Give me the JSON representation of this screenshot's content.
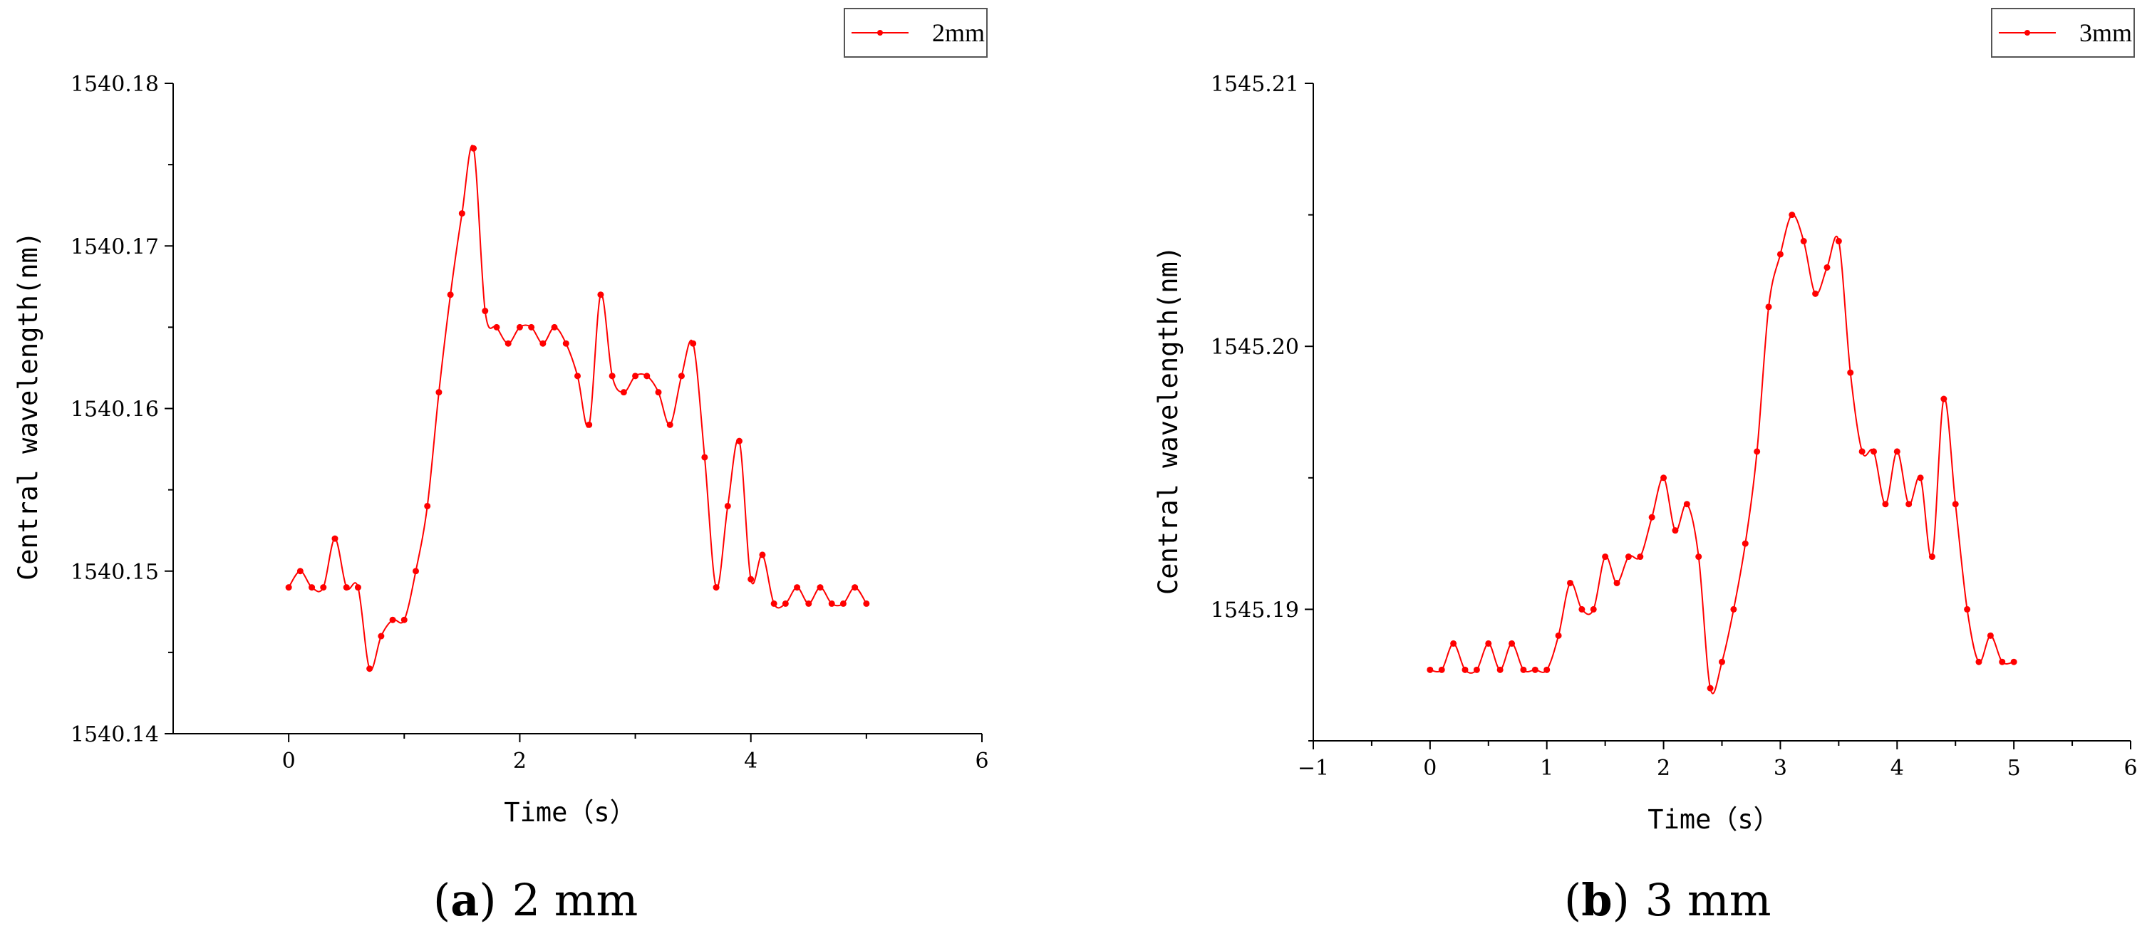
{
  "chart_data": [
    {
      "type": "line",
      "caption_label": "a",
      "caption_text": "2 mm",
      "xlabel": "Time（s）",
      "ylabel": "Central wavelength(nm)",
      "xlim": [
        -1,
        6
      ],
      "ylim": [
        1540.14,
        1540.18
      ],
      "xticks": [
        "0",
        "2",
        "4",
        "6"
      ],
      "yticks": [
        "1540.14",
        "1540.15",
        "1540.16",
        "1540.17",
        "1540.18"
      ],
      "legend_position": "top-right",
      "line_color": "#ff0000",
      "series": [
        {
          "name": "2mm",
          "x": [
            0,
            0.1,
            0.2,
            0.3,
            0.4,
            0.5,
            0.6,
            0.7,
            0.8,
            0.9,
            1.0,
            1.1,
            1.2,
            1.3,
            1.4,
            1.5,
            1.6,
            1.7,
            1.8,
            1.9,
            2.0,
            2.1,
            2.2,
            2.3,
            2.4,
            2.5,
            2.6,
            2.7,
            2.8,
            2.9,
            3.0,
            3.1,
            3.2,
            3.3,
            3.4,
            3.5,
            3.6,
            3.7,
            3.8,
            3.9,
            4.0,
            4.1,
            4.2,
            4.3,
            4.4,
            4.5,
            4.6,
            4.7,
            4.8,
            4.9,
            5.0
          ],
          "y": [
            1540.149,
            1540.15,
            1540.149,
            1540.149,
            1540.152,
            1540.149,
            1540.149,
            1540.144,
            1540.146,
            1540.147,
            1540.147,
            1540.15,
            1540.154,
            1540.161,
            1540.167,
            1540.172,
            1540.176,
            1540.166,
            1540.165,
            1540.164,
            1540.165,
            1540.165,
            1540.164,
            1540.165,
            1540.164,
            1540.162,
            1540.159,
            1540.167,
            1540.162,
            1540.161,
            1540.162,
            1540.162,
            1540.161,
            1540.159,
            1540.162,
            1540.164,
            1540.157,
            1540.149,
            1540.154,
            1540.158,
            1540.1495,
            1540.151,
            1540.148,
            1540.148,
            1540.149,
            1540.148,
            1540.149,
            1540.148,
            1540.148,
            1540.149,
            1540.148
          ]
        }
      ]
    },
    {
      "type": "line",
      "caption_label": "b",
      "caption_text": "3 mm",
      "xlabel": "Time（s）",
      "ylabel": "Central wavelength(nm)",
      "xlim": [
        -1,
        6
      ],
      "ylim": [
        1545.185,
        1545.21
      ],
      "xticks": [
        "−1",
        "0",
        "1",
        "2",
        "3",
        "4",
        "5",
        "6"
      ],
      "yticks": [
        "1545.19",
        "1545.20",
        "1545.21"
      ],
      "legend_position": "top-right",
      "line_color": "#ff0000",
      "series": [
        {
          "name": "3mm",
          "x": [
            0,
            0.1,
            0.2,
            0.3,
            0.4,
            0.5,
            0.6,
            0.7,
            0.8,
            0.9,
            1.0,
            1.1,
            1.2,
            1.3,
            1.4,
            1.5,
            1.6,
            1.7,
            1.8,
            1.9,
            2.0,
            2.1,
            2.2,
            2.3,
            2.4,
            2.5,
            2.6,
            2.7,
            2.8,
            2.9,
            3.0,
            3.1,
            3.2,
            3.3,
            3.4,
            3.5,
            3.6,
            3.7,
            3.8,
            3.9,
            4.0,
            4.1,
            4.2,
            4.3,
            4.4,
            4.5,
            4.6,
            4.7,
            4.8,
            4.9,
            5.0
          ],
          "y": [
            1545.1877,
            1545.1877,
            1545.1887,
            1545.1877,
            1545.1877,
            1545.1887,
            1545.1877,
            1545.1887,
            1545.1877,
            1545.1877,
            1545.1877,
            1545.189,
            1545.191,
            1545.19,
            1545.19,
            1545.192,
            1545.191,
            1545.192,
            1545.192,
            1545.1935,
            1545.195,
            1545.193,
            1545.194,
            1545.192,
            1545.187,
            1545.188,
            1545.19,
            1545.1925,
            1545.196,
            1545.2015,
            1545.2035,
            1545.205,
            1545.204,
            1545.202,
            1545.203,
            1545.204,
            1545.199,
            1545.196,
            1545.196,
            1545.194,
            1545.196,
            1545.194,
            1545.195,
            1545.192,
            1545.198,
            1545.194,
            1545.19,
            1545.188,
            1545.189,
            1545.188,
            1545.188
          ]
        }
      ]
    }
  ]
}
